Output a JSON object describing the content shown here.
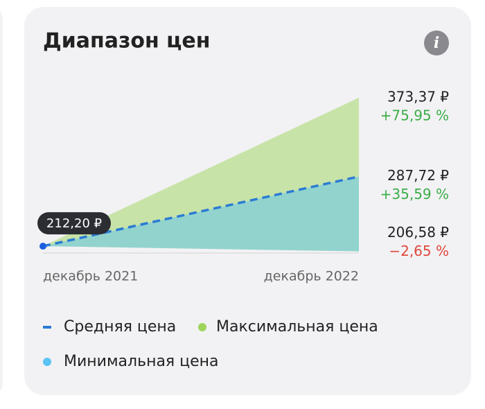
{
  "chart_data": {
    "type": "range-area",
    "title": "Диапазон цен",
    "categories": [
      "декабрь 2021",
      "декабрь 2022"
    ],
    "ylim": [
      204,
      374
    ],
    "series": [
      {
        "name": "Средняя цена",
        "color": "#2a7bd4",
        "values": [
          212.2,
          287.72
        ],
        "value_labels": [
          "212,20 ₽",
          "287,72 ₽"
        ],
        "change_label": "+35,59 %",
        "change_color": "#3aad48"
      },
      {
        "name": "Максимальная цена",
        "color": "#9ed45a",
        "values": [
          212.2,
          373.37
        ],
        "value_labels": [
          null,
          "373,37 ₽"
        ],
        "change_label": "+75,95 %",
        "change_color": "#3aad48"
      },
      {
        "name": "Минимальная цена",
        "color": "#5cc3f5",
        "values": [
          212.2,
          206.58
        ],
        "value_labels": [
          null,
          "206,58 ₽"
        ],
        "change_label": "−2,65 %",
        "change_color": "#e0463c"
      }
    ]
  }
}
